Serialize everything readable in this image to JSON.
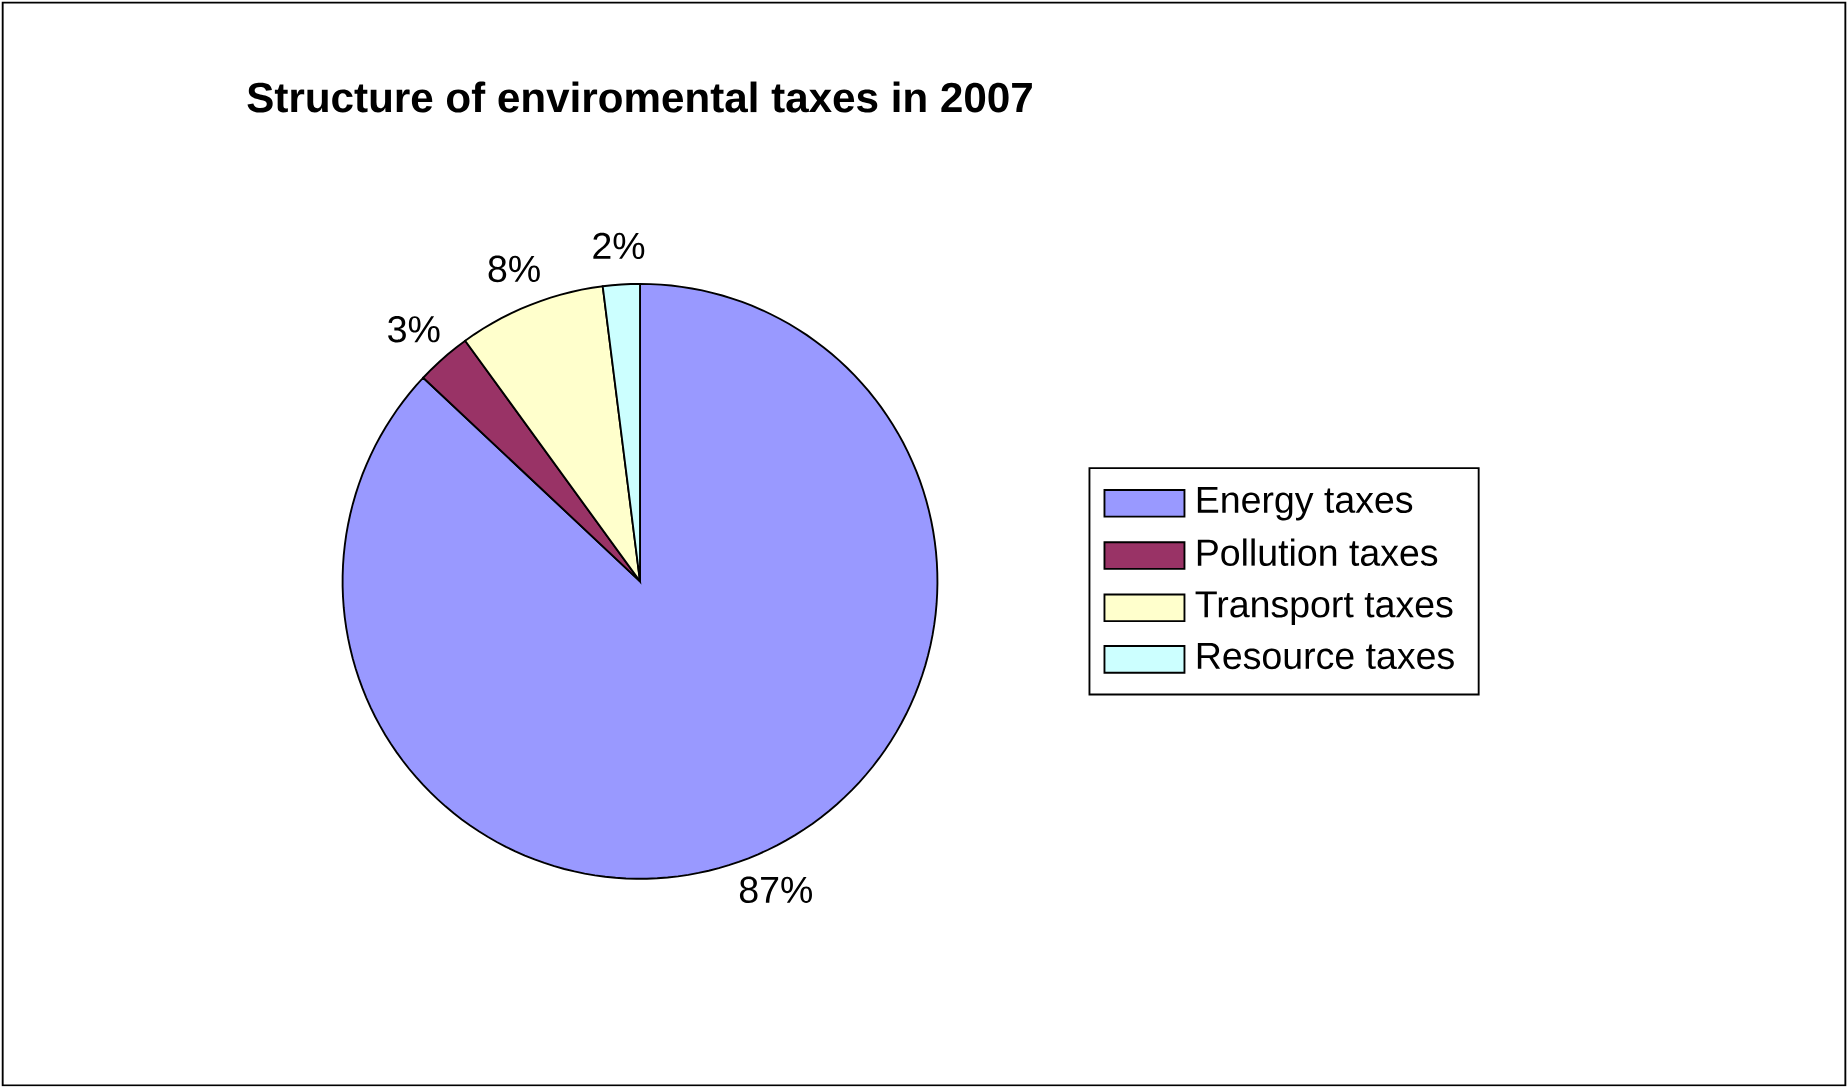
{
  "chart_data": {
    "type": "pie",
    "title": "Structure of enviromental taxes in 2007",
    "categories": [
      "Energy taxes",
      "Pollution taxes",
      "Transport taxes",
      "Resource taxes"
    ],
    "values": [
      87,
      3,
      8,
      2
    ],
    "value_labels": [
      "87%",
      "3%",
      "8%",
      "2%"
    ],
    "colors": [
      "#9999ff",
      "#993366",
      "#ffffcc",
      "#ccffff"
    ],
    "legend": "right"
  }
}
